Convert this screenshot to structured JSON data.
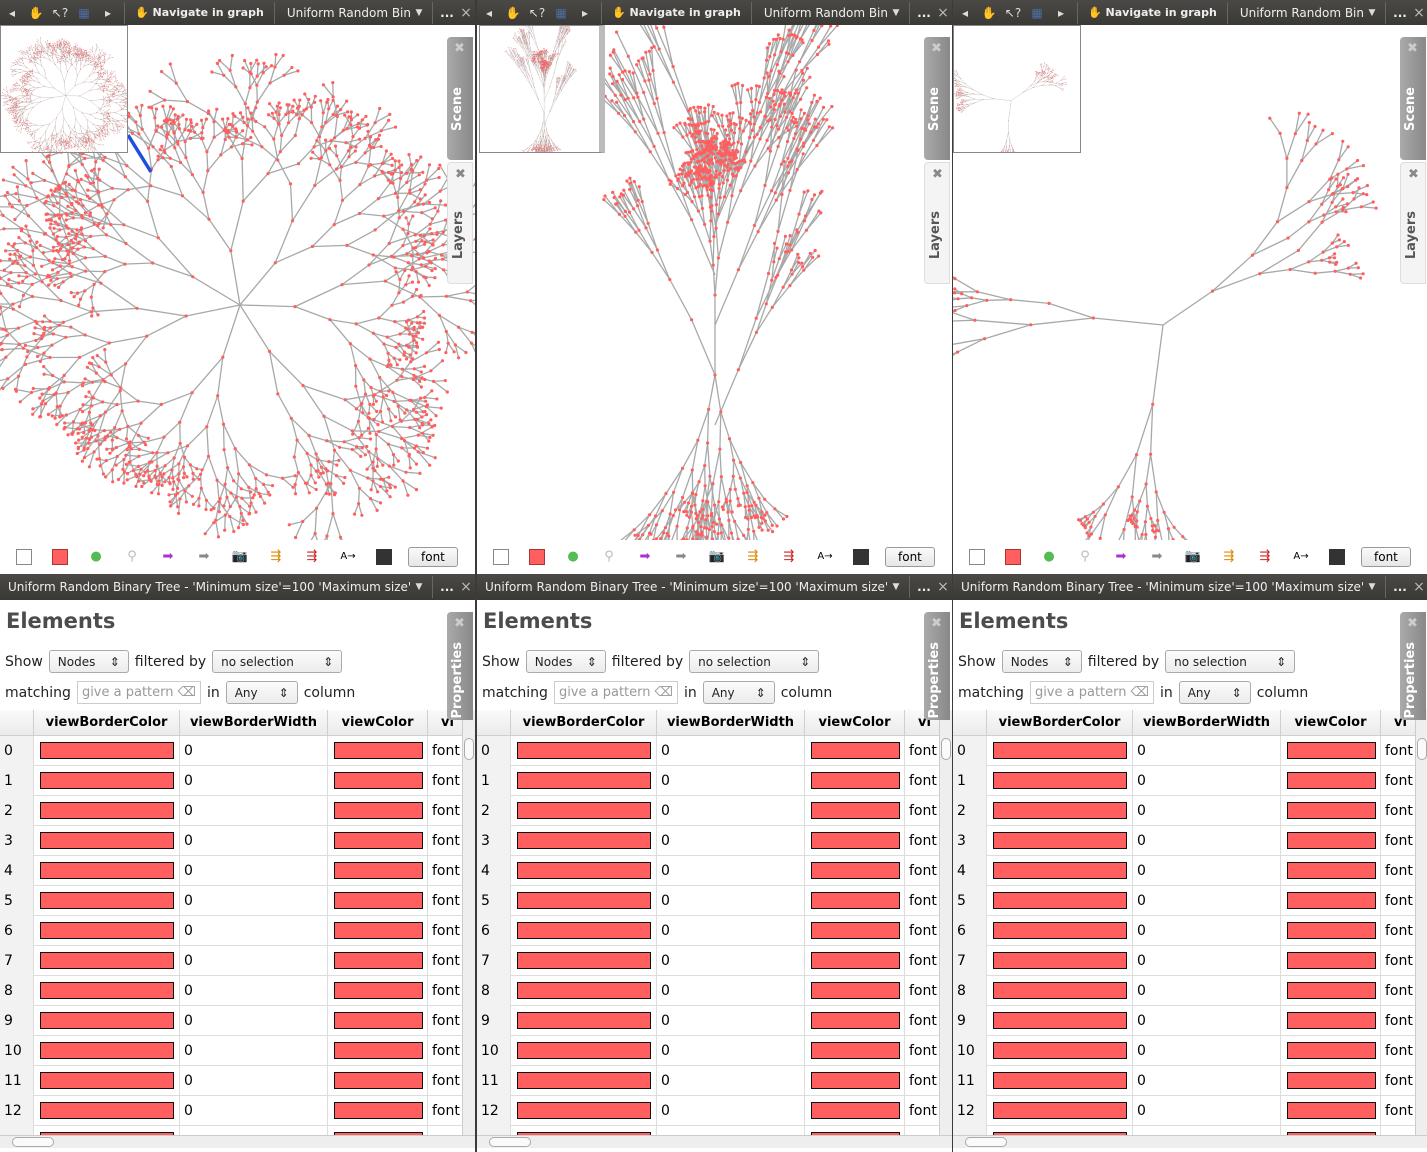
{
  "colors": {
    "node": "#ff5f5f",
    "edge": "#a8a8a8",
    "selected": "#1f4fe0",
    "header_bg": "#3c3b37"
  },
  "panels": [
    {
      "toolbar": {
        "prev_icon": "arrow-left",
        "hand_icon": "hand",
        "whatsthis_icon": "pointer-help",
        "select_icon": "rect-select",
        "next_icon": "arrow-right",
        "mode_label": "Navigate in graph",
        "graph_title": "Uniform Random Binary`",
        "more": "...",
        "close": "×"
      },
      "side_tabs": {
        "scene": "Scene",
        "layers": "Layers",
        "properties": "Properties"
      },
      "tools": {
        "font_label": "font"
      },
      "table_header": {
        "title": "Uniform Random Binary Tree - 'Minimum size'=100 'Maximum size'=1000",
        "more": "...",
        "close": "×"
      },
      "elements": {
        "title": "Elements",
        "show_label": "Show",
        "show_value": "Nodes",
        "filtered_label": "filtered by",
        "filter_value": "no selection",
        "matching_label": "matching",
        "pattern_placeholder": "give a pattern",
        "in_label": "in",
        "column_value": "Any",
        "column_label": "column"
      }
    },
    {
      "toolbar": {
        "prev_icon": "arrow-left",
        "hand_icon": "hand",
        "whatsthis_icon": "pointer-help",
        "select_icon": "rect-select",
        "next_icon": "arrow-right",
        "mode_label": "Navigate in graph",
        "graph_title": "Uniform Random Binary",
        "more": "...",
        "close": "×"
      },
      "side_tabs": {
        "scene": "Scene",
        "layers": "Layers",
        "properties": "Properties"
      },
      "tools": {
        "font_label": "font"
      },
      "table_header": {
        "title": "Uniform Random Binary Tree - 'Minimum size'=100 'Maximum size'=1000",
        "more": "...",
        "close": "×"
      },
      "elements": {
        "title": "Elements",
        "show_label": "Show",
        "show_value": "Nodes",
        "filtered_label": "filtered by",
        "filter_value": "no selection",
        "matching_label": "matching",
        "pattern_placeholder": "give a pattern",
        "in_label": "in",
        "column_value": "Any",
        "column_label": "column"
      }
    },
    {
      "toolbar": {
        "prev_icon": "arrow-left",
        "hand_icon": "hand",
        "whatsthis_icon": "pointer-help",
        "select_icon": "rect-select",
        "next_icon": "arrow-right",
        "mode_label": "Navigate in graph",
        "graph_title": "Uniform Random Binary`",
        "more": "...",
        "close": "×"
      },
      "side_tabs": {
        "scene": "Scene",
        "layers": "Layers",
        "properties": "Properties"
      },
      "tools": {
        "font_label": "font"
      },
      "table_header": {
        "title": "Uniform Random Binary Tree - 'Minimum size'=100 'Maximum size'=1000",
        "more": "...",
        "close": "×"
      },
      "elements": {
        "title": "Elements",
        "show_label": "Show",
        "show_value": "Nodes",
        "filtered_label": "filtered by",
        "filter_value": "no selection",
        "matching_label": "matching",
        "pattern_placeholder": "give a pattern",
        "in_label": "in",
        "column_value": "Any",
        "column_label": "column"
      }
    }
  ],
  "columns": [
    "",
    "viewBorderColor",
    "viewBorderWidth",
    "viewColor",
    "vi"
  ],
  "sort_column": "viewBorderColor",
  "rows": [
    {
      "id": "0",
      "border_width": "0",
      "font": "font"
    },
    {
      "id": "1",
      "border_width": "0",
      "font": "font"
    },
    {
      "id": "2",
      "border_width": "0",
      "font": "font"
    },
    {
      "id": "3",
      "border_width": "0",
      "font": "font"
    },
    {
      "id": "4",
      "border_width": "0",
      "font": "font"
    },
    {
      "id": "5",
      "border_width": "0",
      "font": "font"
    },
    {
      "id": "6",
      "border_width": "0",
      "font": "font"
    },
    {
      "id": "7",
      "border_width": "0",
      "font": "font"
    },
    {
      "id": "8",
      "border_width": "0",
      "font": "font"
    },
    {
      "id": "9",
      "border_width": "0",
      "font": "font"
    },
    {
      "id": "10",
      "border_width": "0",
      "font": "font"
    },
    {
      "id": "11",
      "border_width": "0",
      "font": "font"
    },
    {
      "id": "12",
      "border_width": "0",
      "font": "font"
    }
  ]
}
